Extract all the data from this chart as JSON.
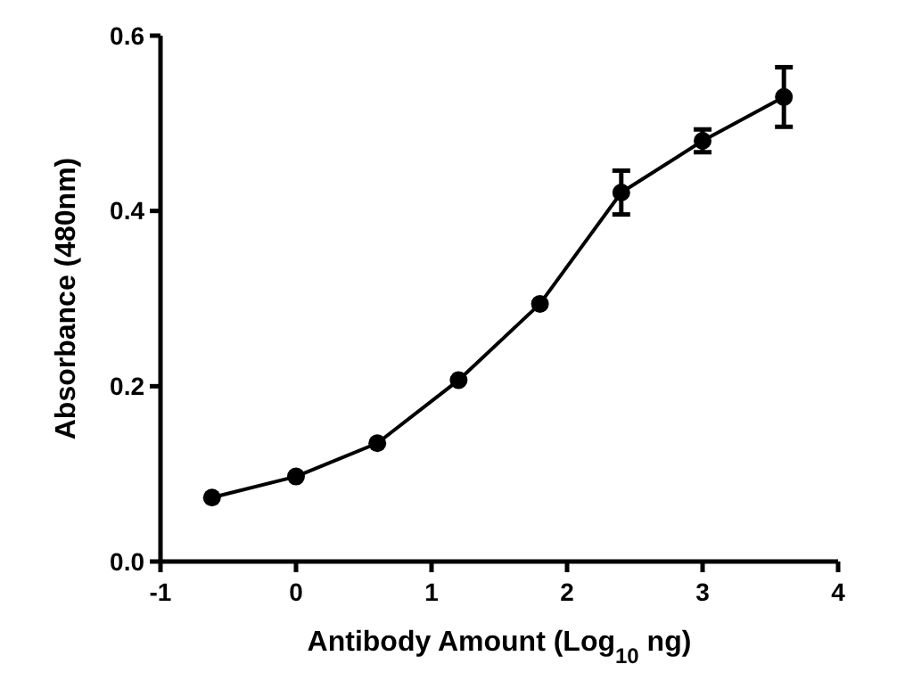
{
  "chart_data": {
    "type": "line",
    "xlabel": "Antibody Amount (Log$_{10}$ ng)",
    "ylabel": "Absorbance (480nm)",
    "x": [
      -0.62,
      0,
      0.6,
      1.2,
      1.8,
      2.4,
      3.0,
      3.6
    ],
    "values": [
      0.073,
      0.097,
      0.135,
      0.207,
      0.294,
      0.421,
      0.48,
      0.53
    ],
    "errors": [
      null,
      null,
      null,
      null,
      null,
      0.025,
      0.013,
      0.034
    ],
    "color": "#000000",
    "marker": "circle",
    "line_style": "solid",
    "xlim": [
      -1,
      4
    ],
    "xticks": [
      -1,
      0,
      1,
      2,
      3,
      4
    ],
    "ylim": [
      0,
      0.6
    ],
    "yticks": [
      {
        "value": 0,
        "label": "0.0"
      },
      {
        "value": 0.2,
        "label": "0.2"
      },
      {
        "value": 0.4,
        "label": "0.4"
      },
      {
        "value": 0.6,
        "label": "0.6"
      }
    ],
    "grid": false
  }
}
